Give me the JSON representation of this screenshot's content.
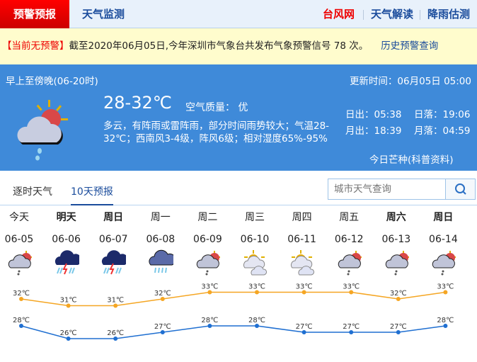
{
  "nav": {
    "active": "预警预报",
    "items": [
      "天气监测"
    ],
    "right": [
      "台风网",
      "天气解读",
      "降雨估测"
    ]
  },
  "warning": {
    "status": "【当前无预警】",
    "text": "截至2020年06月05日,今年深圳市气象台共发布气象预警信号 78 次。",
    "link": "历史预警查询"
  },
  "today": {
    "period": "早上至傍晚(06-20时)",
    "update": "更新时间：06月05日 05:00",
    "temp": "28-32℃",
    "air": "空气质量： 优",
    "desc1": "多云，有阵雨或雷阵雨，部分时间雨势较大；气温28-",
    "desc2": "32℃；西南风3-4级，阵风6级；相对湿度65%-95%",
    "sunrise": "日出：05:38",
    "sunset": "日落：19:06",
    "moonrise": "月出：18:39",
    "moonset": "月落：04:59",
    "link": "今日芒种(科普资料)",
    "icon": "partly-cloudy-shower-icon"
  },
  "tabs": [
    "逐时天气",
    "10天预报"
  ],
  "search": {
    "placeholder": "城市天气查询"
  },
  "colors": {
    "high": "#f5a623",
    "low": "#1f6fd1",
    "accent": "#1a4c9c"
  },
  "forecast": [
    {
      "day": "今天",
      "date": "06-05",
      "icon": "shower",
      "bold": false,
      "high": 32,
      "low": 28
    },
    {
      "day": "明天",
      "date": "06-06",
      "icon": "thunderstorm",
      "bold": true,
      "high": 31,
      "low": 26
    },
    {
      "day": "周日",
      "date": "06-07",
      "icon": "thunderstorm",
      "bold": true,
      "high": 31,
      "low": 26
    },
    {
      "day": "周一",
      "date": "06-08",
      "icon": "rain",
      "bold": false,
      "high": 32,
      "low": 27
    },
    {
      "day": "周二",
      "date": "06-09",
      "icon": "shower",
      "bold": false,
      "high": 33,
      "low": 28
    },
    {
      "day": "周三",
      "date": "06-10",
      "icon": "partly-cloudy",
      "bold": false,
      "high": 33,
      "low": 28
    },
    {
      "day": "周四",
      "date": "06-11",
      "icon": "partly-cloudy",
      "bold": false,
      "high": 33,
      "low": 27
    },
    {
      "day": "周五",
      "date": "06-12",
      "icon": "shower",
      "bold": false,
      "high": 33,
      "low": 27
    },
    {
      "day": "周六",
      "date": "06-13",
      "icon": "shower",
      "bold": true,
      "high": 32,
      "low": 27
    },
    {
      "day": "周日",
      "date": "06-14",
      "icon": "shower",
      "bold": true,
      "high": 33,
      "low": 28
    }
  ],
  "unit": "℃"
}
